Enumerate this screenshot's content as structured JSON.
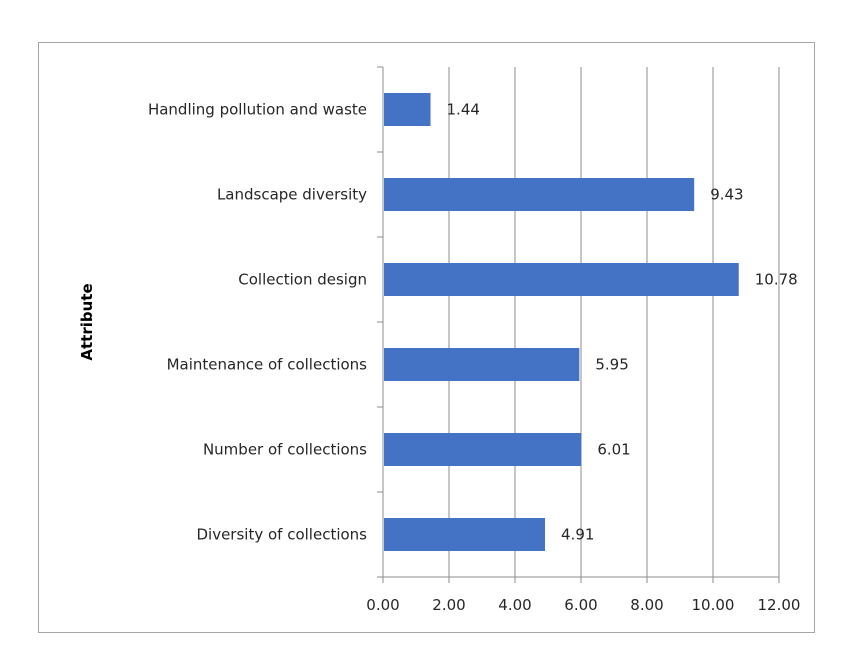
{
  "chart_data": {
    "type": "bar",
    "orientation": "horizontal",
    "ylabel": "Attribute",
    "xlabel": "",
    "categories": [
      "Handling pollution and waste",
      "Landscape diversity",
      "Collection design",
      "Maintenance of collections",
      "Number of collections",
      "Diversity of collections"
    ],
    "values": [
      1.44,
      9.43,
      10.78,
      5.95,
      6.01,
      4.91
    ],
    "value_labels": [
      "1.44",
      "9.43",
      "10.78",
      "5.95",
      "6.01",
      "4.91"
    ],
    "xlim": [
      0,
      12
    ],
    "x_ticks": [
      "0.00",
      "2.00",
      "4.00",
      "6.00",
      "8.00",
      "10.00",
      "12.00"
    ],
    "grid": "vertical",
    "bar_color": "#4472c4",
    "grid_color": "#8c8c8c"
  }
}
